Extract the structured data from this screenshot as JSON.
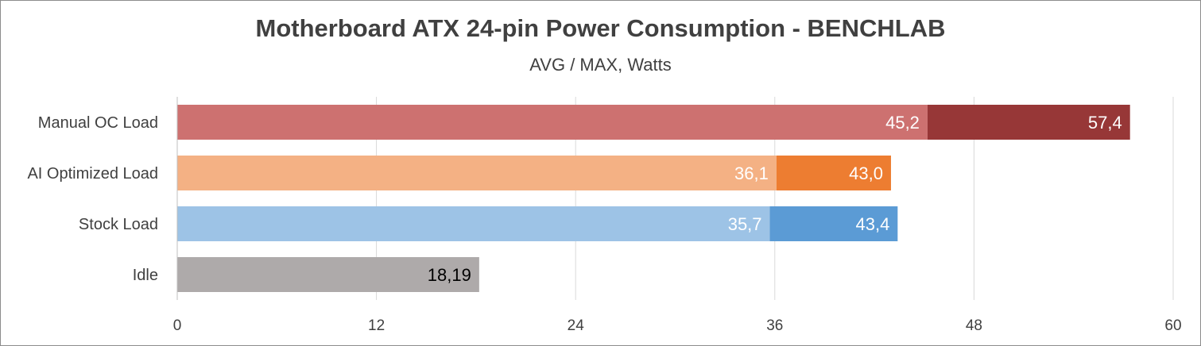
{
  "chart_data": {
    "type": "bar",
    "orientation": "horizontal",
    "stacked": true,
    "title": "Motherboard ATX 24-pin Power Consumption - BENCHLAB",
    "subtitle": "AVG / MAX, Watts",
    "categories": [
      "Manual OC Load",
      "AI Optimized Load",
      "Stock Load",
      "Idle"
    ],
    "avg_values": [
      45.2,
      36.1,
      35.7,
      18.19
    ],
    "avg_labels": [
      "45,2",
      "36,1",
      "35,7",
      "18,19"
    ],
    "max_values": [
      57.4,
      43.0,
      43.4,
      null
    ],
    "max_labels": [
      "57,4",
      "43,0",
      "43,4",
      ""
    ],
    "avg_colors": [
      "#cd7170",
      "#f4b184",
      "#9dc3e6",
      "#aeaaaa"
    ],
    "max_colors": [
      "#973737",
      "#ed7d31",
      "#5b9bd5",
      "#aeaaaa"
    ],
    "avg_label_colors": [
      "#ffffff",
      "#ffffff",
      "#ffffff",
      "#000000"
    ],
    "max_label_color": "#ffffff",
    "xlim": [
      0,
      60
    ],
    "xticks": [
      0,
      12,
      24,
      36,
      48,
      60
    ],
    "grid": true,
    "legend": "none"
  }
}
